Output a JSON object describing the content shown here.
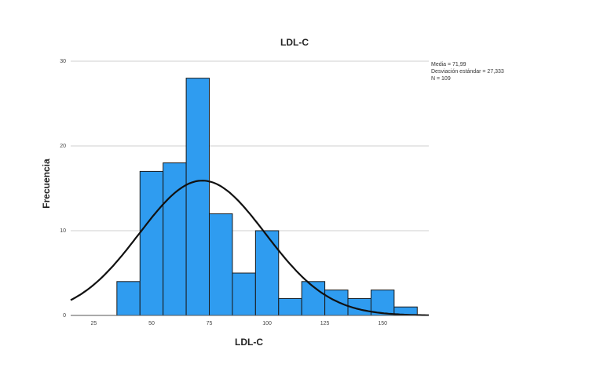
{
  "chart_data": {
    "type": "bar",
    "title": "LDL-C",
    "xlabel": "LDL-C",
    "ylabel": "Frecuencia",
    "xlim": [
      15,
      170
    ],
    "ylim": [
      0,
      30
    ],
    "x_ticks": [
      25,
      50,
      75,
      100,
      125,
      150
    ],
    "y_ticks": [
      0,
      10,
      20,
      30
    ],
    "grid": true,
    "bins": [
      {
        "start": 35,
        "end": 45,
        "count": 4
      },
      {
        "start": 45,
        "end": 55,
        "count": 17
      },
      {
        "start": 55,
        "end": 65,
        "count": 18
      },
      {
        "start": 65,
        "end": 75,
        "count": 28
      },
      {
        "start": 75,
        "end": 85,
        "count": 12
      },
      {
        "start": 85,
        "end": 95,
        "count": 5
      },
      {
        "start": 95,
        "end": 105,
        "count": 10
      },
      {
        "start": 105,
        "end": 115,
        "count": 2
      },
      {
        "start": 115,
        "end": 125,
        "count": 4
      },
      {
        "start": 125,
        "end": 135,
        "count": 3
      },
      {
        "start": 135,
        "end": 145,
        "count": 2
      },
      {
        "start": 145,
        "end": 155,
        "count": 3
      },
      {
        "start": 155,
        "end": 165,
        "count": 1
      }
    ],
    "normal_curve": {
      "mean": 71.99,
      "sd": 27.333,
      "n": 109
    },
    "stats": {
      "mean_label": "Media = 71,99",
      "sd_label": "Desviación estándar = 27,333",
      "n_label": "N = 109"
    }
  }
}
